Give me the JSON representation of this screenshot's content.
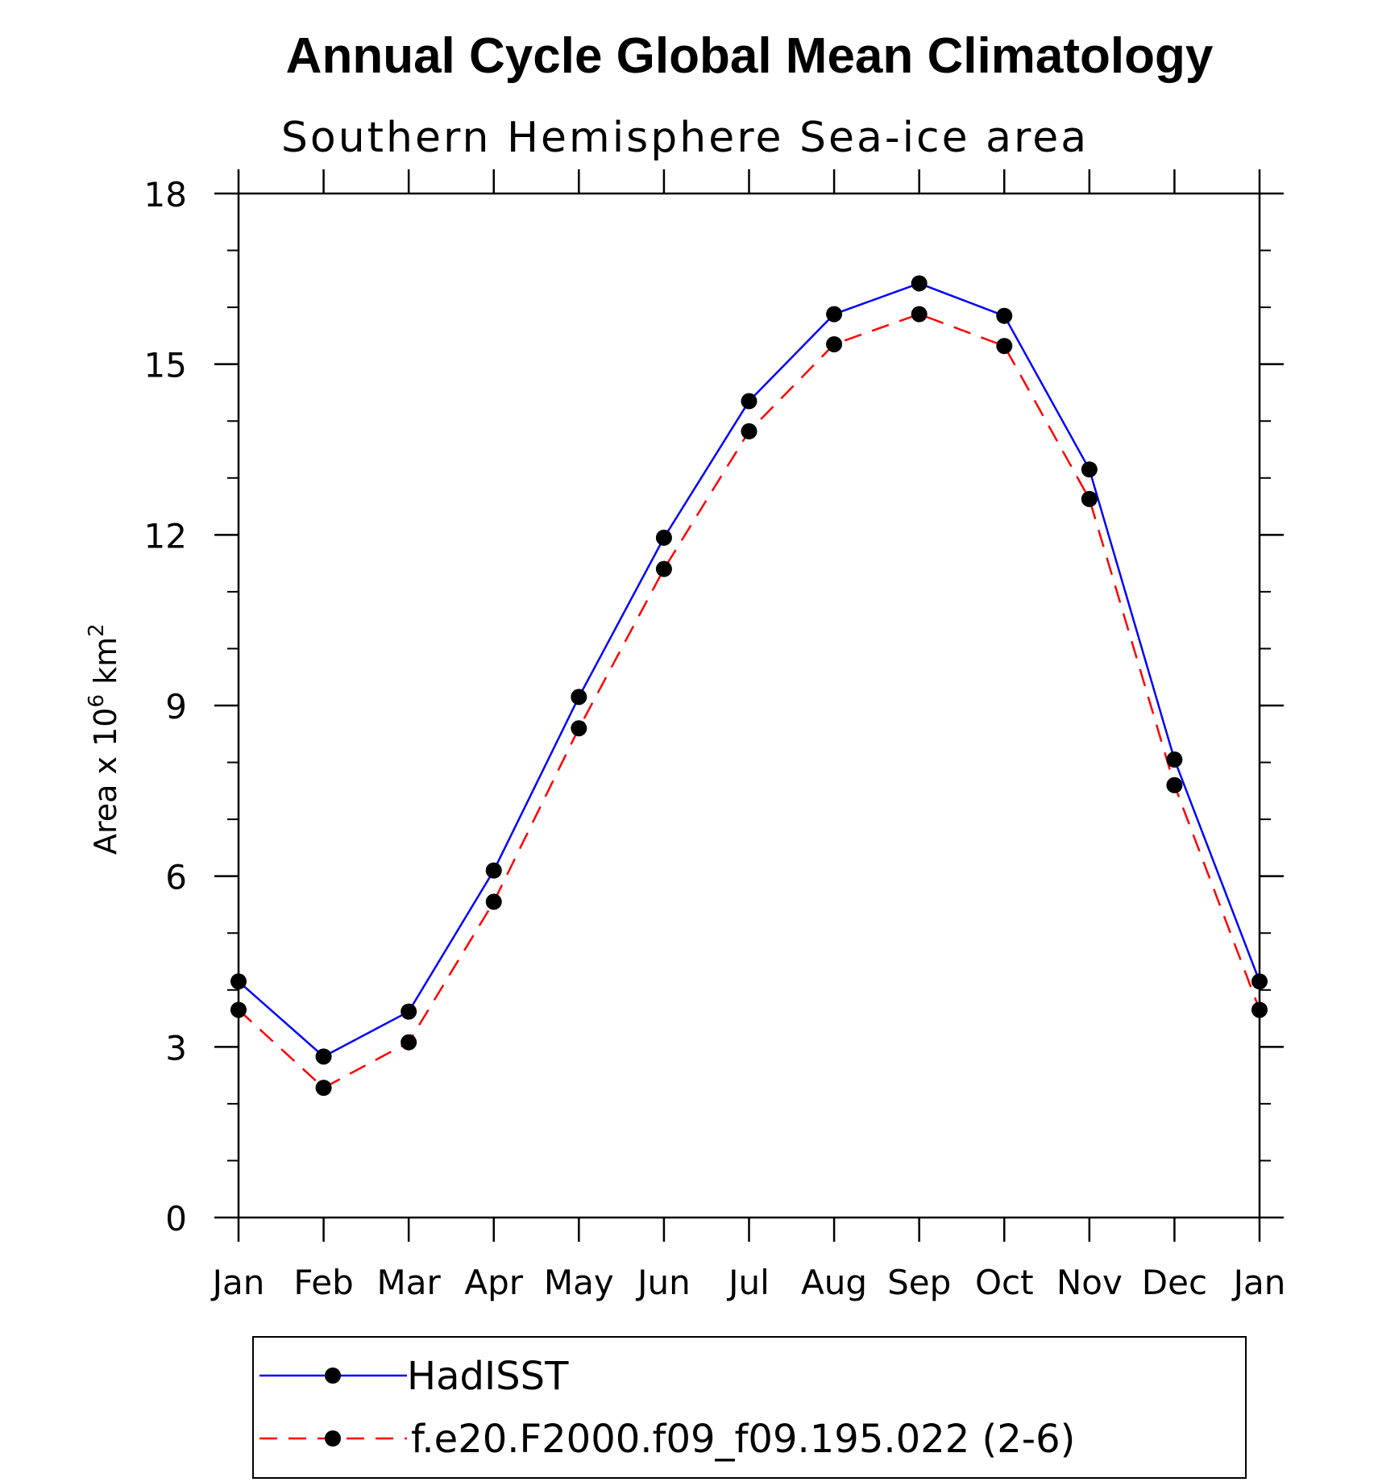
{
  "chart_data": {
    "type": "line",
    "title": "Annual Cycle Global Mean Climatology",
    "subtitle": "Southern Hemisphere Sea-ice area",
    "ylabel_main": "Area x 10",
    "ylabel_sup_exp": "6",
    "ylabel_unit": " km",
    "ylabel_sup_unit": "2",
    "categories": [
      "Jan",
      "Feb",
      "Mar",
      "Apr",
      "May",
      "Jun",
      "Jul",
      "Aug",
      "Sep",
      "Oct",
      "Nov",
      "Dec",
      "Jan"
    ],
    "ylim": [
      0,
      18
    ],
    "yticks": [
      "0",
      "3",
      "6",
      "9",
      "12",
      "15",
      "18"
    ],
    "grid": false,
    "legend_placement": "bottom",
    "series": [
      {
        "name": "HadISST",
        "color": "#0000ff",
        "dash": "solid",
        "marker": "filled-circle",
        "values": [
          4.15,
          2.83,
          3.62,
          6.1,
          9.15,
          11.95,
          14.35,
          15.88,
          16.42,
          15.85,
          13.15,
          8.05,
          4.15
        ]
      },
      {
        "name": "f.e20.F2000.f09_f09.195.022 (2-6)",
        "color": "#ff0000",
        "dash": "dashed",
        "marker": "filled-circle",
        "values": [
          3.65,
          2.28,
          3.08,
          5.55,
          8.6,
          11.4,
          13.82,
          15.35,
          15.88,
          15.32,
          12.63,
          7.6,
          3.65
        ]
      }
    ]
  }
}
